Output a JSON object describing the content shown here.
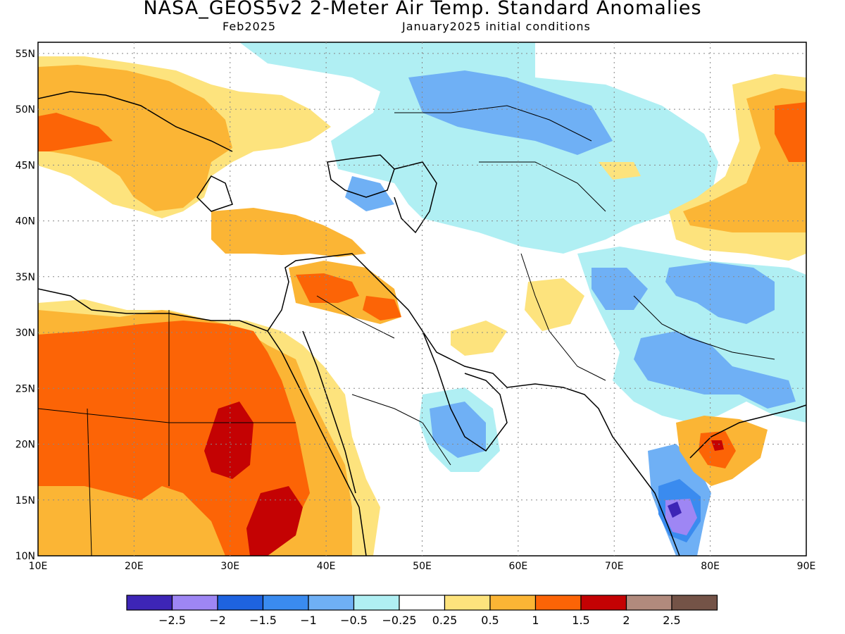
{
  "header": {
    "title": "NASA_GEOS5v2 2-Meter Air Temp. Standard Anomalies",
    "subtitle_left": "Feb2025",
    "subtitle_right": "January2025 initial conditions"
  },
  "map": {
    "lat_labels": [
      "55N",
      "50N",
      "45N",
      "40N",
      "35N",
      "30N",
      "25N",
      "20N",
      "15N",
      "10N"
    ],
    "lon_labels": [
      "10E",
      "20E",
      "30E",
      "40E",
      "50E",
      "60E",
      "70E",
      "80E",
      "90E"
    ],
    "lat_range": [
      10,
      56
    ],
    "lon_range": [
      10,
      90
    ],
    "anomaly_regions": [
      {
        "name": "europe-warm",
        "level": "0.5 to 1",
        "color": "#fbb535"
      },
      {
        "name": "north-africa-warm",
        "level": "1 to 1.5",
        "color": "#fc6406"
      },
      {
        "name": "sudan-hot-core",
        "level": "1.5 to 2",
        "color": "#c40203"
      },
      {
        "name": "central-asia-cool",
        "level": "-1 to -0.5",
        "color": "#6fb0f5"
      },
      {
        "name": "himalaya-cool",
        "level": "-1.5 to -1",
        "color": "#3a8bef"
      },
      {
        "name": "south-india-cold-core",
        "level": "-2.5 to -2",
        "color": "#9e86f4"
      },
      {
        "name": "china-warm",
        "level": "0.5 to 1",
        "color": "#fbb535"
      }
    ]
  },
  "colorbar": {
    "colors": [
      "#3d25b6",
      "#9e86f4",
      "#1e63e0",
      "#3a8bef",
      "#6fb0f5",
      "#b0eff3",
      "#ffffff",
      "#fde37d",
      "#fbb535",
      "#fc6406",
      "#c40203",
      "#b18a7d",
      "#745347"
    ],
    "labels": [
      "-2.5",
      "-2",
      "-1.5",
      "-1",
      "-0.5",
      "-0.25",
      "0.25",
      "0.5",
      "1",
      "1.5",
      "2",
      "2.5"
    ]
  }
}
